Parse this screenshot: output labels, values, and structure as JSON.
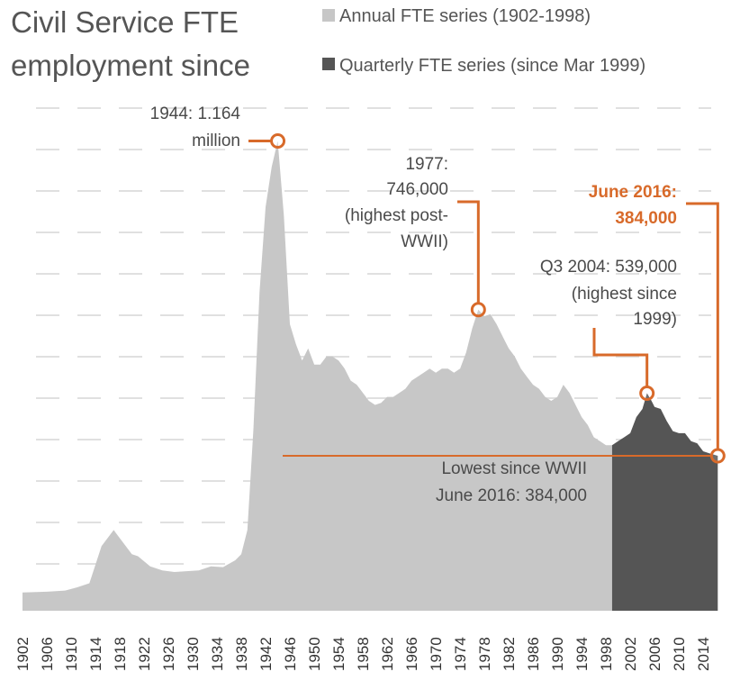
{
  "title_lines": [
    "Civil Service FTE",
    "employment since"
  ],
  "legend": [
    {
      "label": "Annual FTE series (1902-1998)",
      "color": "#c7c7c7"
    },
    {
      "label": "Quarterly FTE series (since Mar 1999)",
      "color": "#555555"
    }
  ],
  "colors": {
    "annual": "#c7c7c7",
    "quarterly": "#555555",
    "accent": "#d86a2a",
    "grid": "#e0e0e0"
  },
  "chart_data": {
    "type": "area",
    "title": "Civil Service FTE employment since",
    "xlabel": "",
    "ylabel": "",
    "xlim": [
      1902,
      2016.5
    ],
    "ylim": [
      0,
      1250000
    ],
    "grid": true,
    "legend_position": "top-right",
    "tick_labels": [
      "1902",
      "1906",
      "1910",
      "1914",
      "1918",
      "1922",
      "1926",
      "1930",
      "1934",
      "1938",
      "1942",
      "1946",
      "1950",
      "1954",
      "1958",
      "1962",
      "1966",
      "1970",
      "1974",
      "1978",
      "1982",
      "1986",
      "1990",
      "1994",
      "1998",
      "2002",
      "2006",
      "2010",
      "2014"
    ],
    "series": [
      {
        "name": "Annual FTE series (1902-1998)",
        "x": [
          1902,
          1906,
          1909,
          1911,
          1913,
          1915,
          1917,
          1918,
          1920,
          1921,
          1923,
          1925,
          1927,
          1929,
          1931,
          1933,
          1935,
          1937,
          1938,
          1939,
          1940,
          1941,
          1942,
          1943,
          1944,
          1945,
          1946,
          1947,
          1948,
          1949,
          1950,
          1951,
          1952,
          1953,
          1954,
          1955,
          1956,
          1957,
          1958,
          1959,
          1960,
          1961,
          1962,
          1963,
          1964,
          1965,
          1966,
          1967,
          1968,
          1969,
          1970,
          1971,
          1972,
          1973,
          1974,
          1975,
          1976,
          1977,
          1978,
          1979,
          1980,
          1981,
          1982,
          1983,
          1984,
          1985,
          1986,
          1987,
          1988,
          1989,
          1990,
          1991,
          1992,
          1993,
          1994,
          1995,
          1996,
          1997,
          1998,
          1999
        ],
        "values": [
          45000,
          47000,
          50000,
          58000,
          68000,
          160000,
          200000,
          180000,
          140000,
          135000,
          110000,
          100000,
          96000,
          98000,
          100000,
          110000,
          108000,
          125000,
          140000,
          200000,
          450000,
          790000,
          1000000,
          1100000,
          1164000,
          980000,
          710000,
          660000,
          620000,
          650000,
          610000,
          610000,
          630000,
          630000,
          620000,
          600000,
          570000,
          560000,
          540000,
          520000,
          510000,
          515000,
          530000,
          530000,
          540000,
          550000,
          570000,
          580000,
          590000,
          600000,
          590000,
          600000,
          600000,
          590000,
          600000,
          640000,
          700000,
          746000,
          730000,
          735000,
          710000,
          680000,
          650000,
          630000,
          600000,
          580000,
          560000,
          550000,
          530000,
          520000,
          530000,
          560000,
          540000,
          510000,
          480000,
          460000,
          430000,
          420000,
          410000,
          410000
        ]
      },
      {
        "name": "Quarterly FTE series (since Mar 1999)",
        "x": [
          1999,
          2000,
          2001,
          2002,
          2003,
          2004,
          2004.75,
          2005.5,
          2006,
          2007,
          2008,
          2009,
          2010,
          2011,
          2012,
          2013,
          2014,
          2015,
          2016.4
        ],
        "values": [
          410000,
          420000,
          430000,
          440000,
          480000,
          500000,
          539000,
          520000,
          505000,
          500000,
          470000,
          445000,
          440000,
          440000,
          420000,
          415000,
          395000,
          390000,
          384000
        ]
      }
    ],
    "annotations": [
      {
        "lines": [
          "1944: 1.164",
          "million"
        ],
        "x": 1944,
        "y": 1164000
      },
      {
        "lines": [
          "1977:",
          "746,000",
          "(highest post-",
          "WWII)"
        ],
        "x": 1977,
        "y": 746000
      },
      {
        "lines": [
          "June 2016:",
          "384,000"
        ],
        "x": 2016.4,
        "y": 384000,
        "highlight": true
      },
      {
        "lines": [
          "Q3 2004: 539,000",
          "(highest since",
          "1999)"
        ],
        "x": 2004.75,
        "y": 539000
      },
      {
        "lines": [
          "Lowest since WWII",
          "June 2016: 384,000"
        ],
        "x": 2016.4,
        "y": 384000
      }
    ]
  }
}
